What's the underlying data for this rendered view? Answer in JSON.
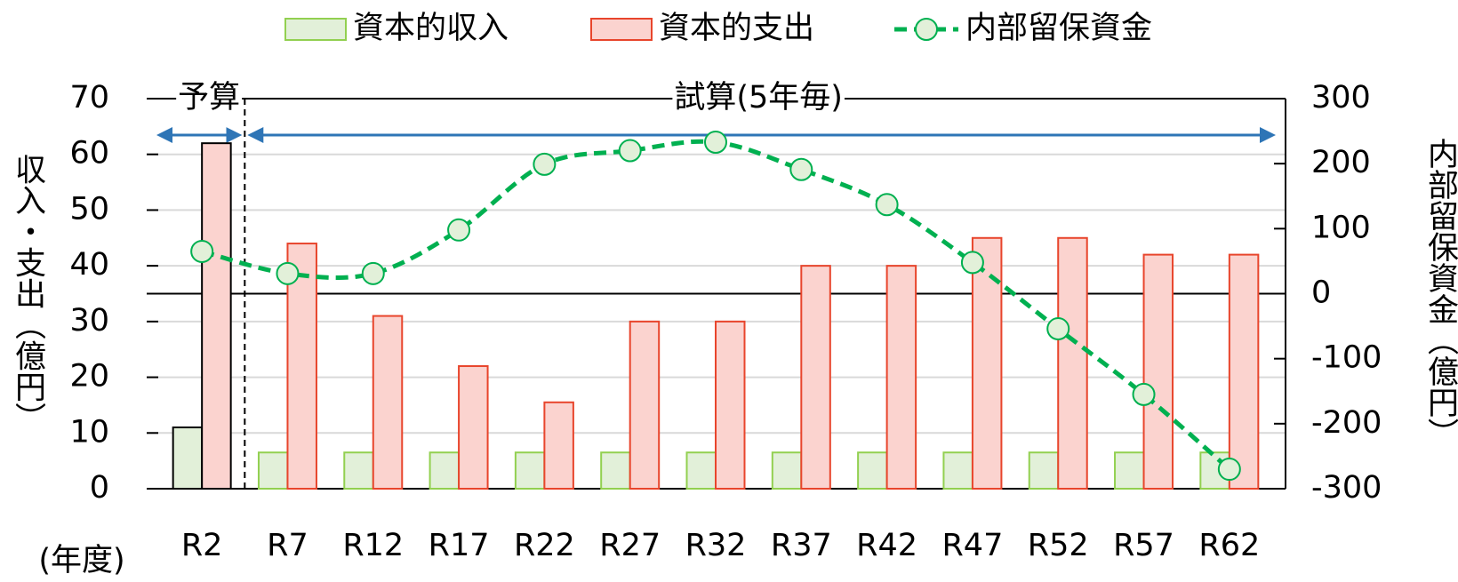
{
  "chart_data": {
    "type": "bar_line",
    "categories": [
      "R2",
      "R7",
      "R12",
      "R17",
      "R22",
      "R27",
      "R32",
      "R37",
      "R42",
      "R47",
      "R52",
      "R57",
      "R62"
    ],
    "series": [
      {
        "name": "資本的収入",
        "type": "bar",
        "color": "#e2f0d9",
        "edge_color": "#92d050",
        "values": [
          11,
          6.5,
          6.5,
          6.5,
          6.5,
          6.5,
          6.5,
          6.5,
          6.5,
          6.5,
          6.5,
          6.5,
          6.5
        ]
      },
      {
        "name": "資本的支出",
        "type": "bar",
        "color": "#fbd3cf",
        "edge_color": "#e8452c",
        "values": [
          62,
          44,
          31,
          22,
          15.5,
          30,
          30,
          40,
          40,
          45,
          45,
          42,
          42
        ]
      },
      {
        "name": "内部留保資金",
        "type": "line",
        "axis": "y2",
        "color": "#00b050",
        "marker_fill": "#e2f0d9",
        "dashed": true,
        "values": [
          65,
          31,
          31,
          98,
          199,
          220,
          233,
          191,
          137,
          48,
          -54,
          -155,
          -270
        ]
      }
    ],
    "periods": [
      {
        "label": "予算",
        "from": "R2",
        "to": "R2",
        "edge_color": "#000000"
      },
      {
        "label": "試算(5年毎)",
        "from": "R7",
        "to": "R62"
      }
    ],
    "period_arrow_color": "#2e75b6",
    "ylabel": "収入・支出（億円）",
    "y2label": "内部留保資金（億円）",
    "xlabel": "(年度)",
    "ylim": [
      0,
      70
    ],
    "yticks": [
      0,
      10,
      20,
      30,
      40,
      50,
      60,
      70
    ],
    "y2lim": [
      -300,
      300
    ],
    "y2ticks": [
      -300,
      -200,
      -100,
      0,
      100,
      200,
      300
    ],
    "negative_tick_color": "#ff0000",
    "grid": true,
    "legend": "top"
  }
}
